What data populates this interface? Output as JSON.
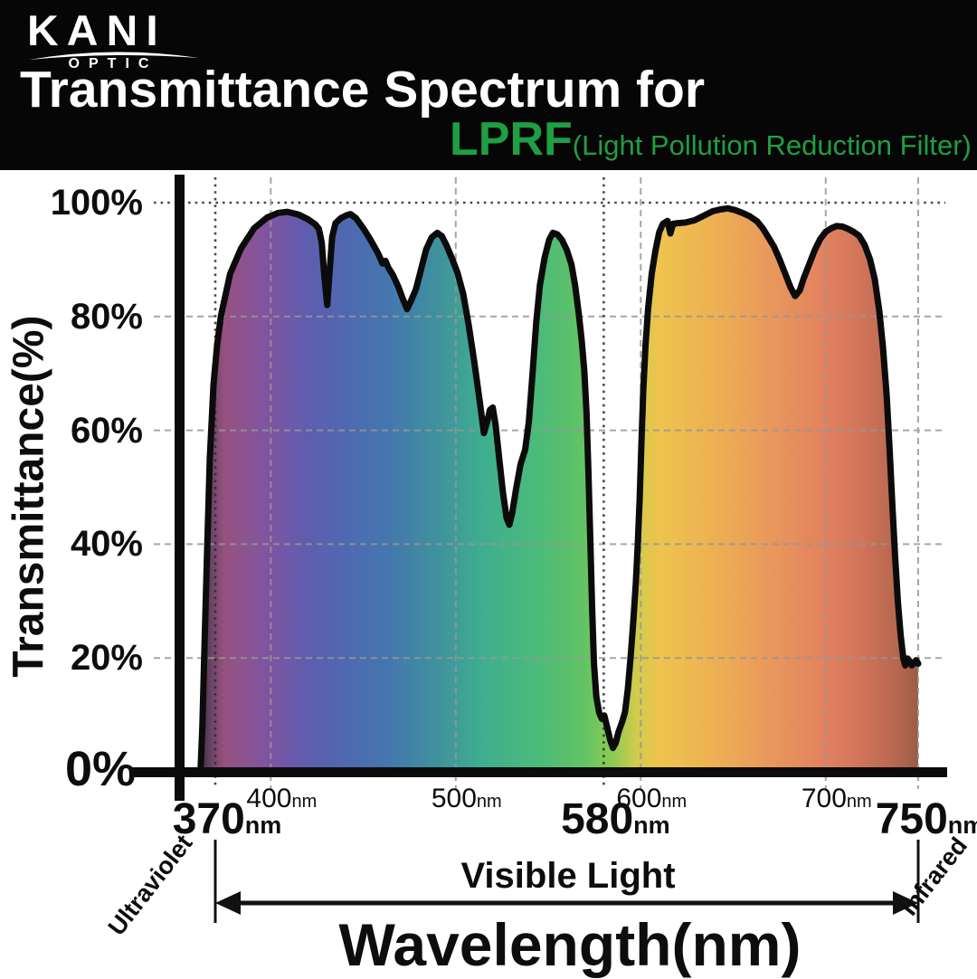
{
  "header": {
    "brand": "KANI",
    "brand_sub": "OPTIC",
    "title": "Transmittance Spectrum for",
    "product": "LPRF",
    "product_note": "(Light Pollution Reduction Filter)",
    "accent_green": "#1f9e43"
  },
  "chart_data": {
    "type": "area",
    "title": "Transmittance Spectrum for LPRF (Light Pollution Reduction Filter)",
    "xlabel": "Wavelength(nm)",
    "ylabel": "Transmittance(%)",
    "x_unit": "nm",
    "xlim_nm": [
      362,
      750
    ],
    "ylim_pct": [
      0,
      100
    ],
    "grid": "dashed",
    "y_ticks_pct": [
      100,
      80,
      60,
      40,
      20,
      0
    ],
    "x_major_ticks_nm": [
      370,
      580,
      750
    ],
    "x_minor_ticks_nm": [
      400,
      500,
      600,
      700
    ],
    "regions": {
      "left": "Ultraviolet",
      "center": "Visible Light",
      "right": "Infrared"
    },
    "curve_nm_pct": [
      [
        362,
        0
      ],
      [
        363,
        8
      ],
      [
        364,
        20
      ],
      [
        365.5,
        38
      ],
      [
        367,
        55
      ],
      [
        369,
        68
      ],
      [
        371,
        75
      ],
      [
        373,
        80
      ],
      [
        378,
        87.5
      ],
      [
        384,
        92
      ],
      [
        391,
        95.5
      ],
      [
        398,
        97.4
      ],
      [
        404,
        98.2
      ],
      [
        409,
        98.4
      ],
      [
        415,
        97.9
      ],
      [
        420,
        97.1
      ],
      [
        424,
        96.2
      ],
      [
        426,
        95.4
      ],
      [
        427.5,
        93
      ],
      [
        429,
        87
      ],
      [
        430.5,
        82
      ],
      [
        431.8,
        88
      ],
      [
        433.2,
        94
      ],
      [
        435,
        96.4
      ],
      [
        438,
        97.3
      ],
      [
        441,
        97.8
      ],
      [
        443,
        98
      ],
      [
        446,
        97.3
      ],
      [
        450,
        95.5
      ],
      [
        454,
        93.4
      ],
      [
        458,
        91.1
      ],
      [
        460.5,
        89.3
      ],
      [
        462,
        89.8
      ],
      [
        463.5,
        88.6
      ],
      [
        466,
        87.3
      ],
      [
        469,
        85.2
      ],
      [
        471.5,
        83
      ],
      [
        473.7,
        81.3
      ],
      [
        476,
        82.9
      ],
      [
        478.5,
        84.8
      ],
      [
        481,
        88
      ],
      [
        484,
        91.8
      ],
      [
        487,
        93.9
      ],
      [
        490,
        94.7
      ],
      [
        492.5,
        94.1
      ],
      [
        495,
        92.5
      ],
      [
        498,
        90.2
      ],
      [
        501,
        87.6
      ],
      [
        504,
        84
      ],
      [
        507,
        78.5
      ],
      [
        510,
        72
      ],
      [
        513,
        65
      ],
      [
        515.2,
        59.5
      ],
      [
        516.8,
        61.3
      ],
      [
        518.5,
        63.6
      ],
      [
        520,
        64
      ],
      [
        521.5,
        61
      ],
      [
        523.5,
        55
      ],
      [
        525.5,
        49
      ],
      [
        527.5,
        44.6
      ],
      [
        529,
        43.4
      ],
      [
        530.5,
        45.5
      ],
      [
        532.5,
        49.5
      ],
      [
        535,
        54
      ],
      [
        537.5,
        56.6
      ],
      [
        539.5,
        61.5
      ],
      [
        541.5,
        70
      ],
      [
        543.5,
        79
      ],
      [
        545.5,
        85.5
      ],
      [
        548,
        90.3
      ],
      [
        550.5,
        93.5
      ],
      [
        552.5,
        94.7
      ],
      [
        555,
        94.4
      ],
      [
        557.5,
        93.4
      ],
      [
        560,
        91.7
      ],
      [
        562.5,
        89.2
      ],
      [
        564.5,
        85.5
      ],
      [
        566.5,
        80.5
      ],
      [
        568,
        76
      ],
      [
        569.5,
        70.5
      ],
      [
        570.7,
        63
      ],
      [
        571.7,
        53
      ],
      [
        572.7,
        41
      ],
      [
        573.7,
        29
      ],
      [
        574.7,
        19
      ],
      [
        576,
        13.2
      ],
      [
        577.5,
        10.4
      ],
      [
        579,
        9.3
      ],
      [
        580.3,
        9.9
      ],
      [
        582,
        7.6
      ],
      [
        583.5,
        5.6
      ],
      [
        585,
        4.2
      ],
      [
        586.5,
        5.1
      ],
      [
        588,
        7
      ],
      [
        590,
        8.8
      ],
      [
        591.5,
        10.5
      ],
      [
        593,
        14.5
      ],
      [
        594.5,
        20
      ],
      [
        596,
        26.5
      ],
      [
        597.3,
        33
      ],
      [
        598.4,
        40
      ],
      [
        599.4,
        48
      ],
      [
        600.4,
        58
      ],
      [
        601.4,
        67
      ],
      [
        602.6,
        75
      ],
      [
        604,
        81.5
      ],
      [
        606,
        87.6
      ],
      [
        608,
        91.6
      ],
      [
        610,
        94.8
      ],
      [
        612,
        96.3
      ],
      [
        614.5,
        96.8
      ],
      [
        616,
        94.6
      ],
      [
        617.5,
        96.3
      ],
      [
        620,
        96.4
      ],
      [
        624,
        96.5
      ],
      [
        629,
        96.9
      ],
      [
        634,
        97.7
      ],
      [
        639,
        98.5
      ],
      [
        643,
        98.8
      ],
      [
        647,
        99
      ],
      [
        651,
        98.7
      ],
      [
        655,
        98.2
      ],
      [
        659,
        97.6
      ],
      [
        663,
        96.7
      ],
      [
        666,
        95.5
      ],
      [
        669,
        93.9
      ],
      [
        672,
        92.3
      ],
      [
        675,
        90.1
      ],
      [
        678,
        87.6
      ],
      [
        681,
        85.1
      ],
      [
        683.5,
        83.6
      ],
      [
        686,
        84.6
      ],
      [
        688,
        86.6
      ],
      [
        691,
        89.1
      ],
      [
        694,
        91.6
      ],
      [
        697,
        93.6
      ],
      [
        700,
        94.9
      ],
      [
        703,
        95.5
      ],
      [
        706,
        95.9
      ],
      [
        709,
        95.8
      ],
      [
        712,
        95.4
      ],
      [
        715,
        94.9
      ],
      [
        718,
        94.2
      ],
      [
        721,
        92.6
      ],
      [
        724,
        90
      ],
      [
        726.5,
        86.6
      ],
      [
        729,
        81
      ],
      [
        731,
        74.5
      ],
      [
        733,
        66
      ],
      [
        734.5,
        57
      ],
      [
        736,
        47
      ],
      [
        737.5,
        38
      ],
      [
        739,
        30
      ],
      [
        740.5,
        24
      ],
      [
        742,
        19.9
      ],
      [
        743,
        18.7
      ],
      [
        744.3,
        19.9
      ],
      [
        745.5,
        19.4
      ],
      [
        746.6,
        18.7
      ],
      [
        748,
        19.3
      ],
      [
        749,
        19.6
      ],
      [
        750,
        19
      ]
    ],
    "spectrum_gradient": [
      [
        362,
        "#3a3138"
      ],
      [
        368,
        "#6d4467"
      ],
      [
        375,
        "#96527f"
      ],
      [
        385,
        "#8d538f"
      ],
      [
        400,
        "#7d54a2"
      ],
      [
        420,
        "#5f5dae"
      ],
      [
        440,
        "#4f68b2"
      ],
      [
        465,
        "#4478ad"
      ],
      [
        490,
        "#3f919d"
      ],
      [
        515,
        "#3fae90"
      ],
      [
        545,
        "#4cbb79"
      ],
      [
        570,
        "#64c364"
      ],
      [
        585,
        "#8ccb52"
      ],
      [
        598,
        "#d2cb4c"
      ],
      [
        610,
        "#eec44d"
      ],
      [
        640,
        "#edb053"
      ],
      [
        670,
        "#e9985c"
      ],
      [
        700,
        "#e2815f"
      ],
      [
        720,
        "#d0745a"
      ],
      [
        740,
        "#b3664e"
      ],
      [
        750,
        "#9d5b46"
      ]
    ]
  }
}
